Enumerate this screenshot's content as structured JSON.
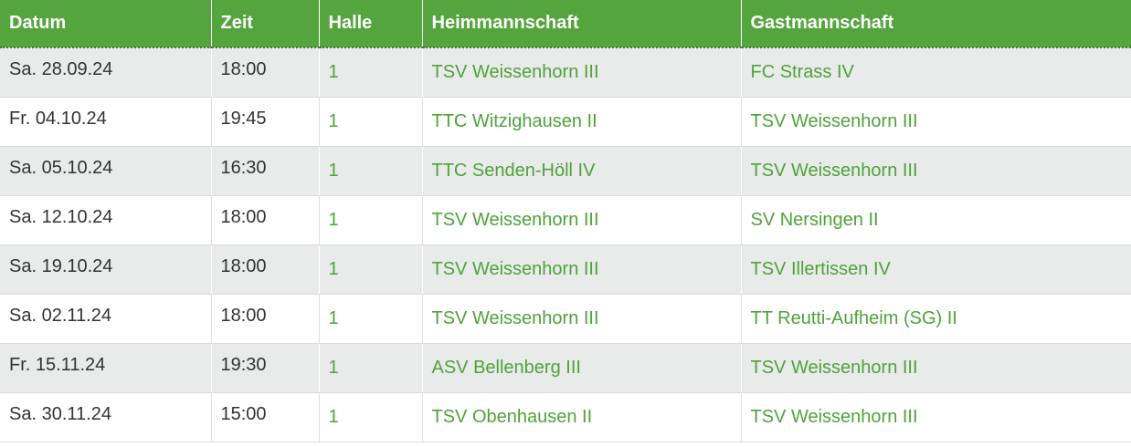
{
  "table": {
    "headers": [
      "Datum",
      "Zeit",
      "Halle",
      "Heimmannschaft",
      "Gastmannschaft"
    ],
    "rows": [
      {
        "datum": "Sa. 28.09.24",
        "zeit": "18:00",
        "halle": "1",
        "heim": "TSV Weissenhorn III",
        "gast": "FC Strass IV"
      },
      {
        "datum": "Fr. 04.10.24",
        "zeit": "19:45",
        "halle": "1",
        "heim": "TTC Witzighausen II",
        "gast": "TSV Weissenhorn III"
      },
      {
        "datum": "Sa. 05.10.24",
        "zeit": "16:30",
        "halle": "1",
        "heim": "TTC Senden-Höll IV",
        "gast": "TSV Weissenhorn III"
      },
      {
        "datum": "Sa. 12.10.24",
        "zeit": "18:00",
        "halle": "1",
        "heim": "TSV Weissenhorn III",
        "gast": "SV Nersingen II"
      },
      {
        "datum": "Sa. 19.10.24",
        "zeit": "18:00",
        "halle": "1",
        "heim": "TSV Weissenhorn III",
        "gast": "TSV Illertissen IV"
      },
      {
        "datum": "Sa. 02.11.24",
        "zeit": "18:00",
        "halle": "1",
        "heim": "TSV Weissenhorn III",
        "gast": "TT Reutti-Aufheim (SG) II"
      },
      {
        "datum": "Fr. 15.11.24",
        "zeit": "19:30",
        "halle": "1",
        "heim": "ASV Bellenberg III",
        "gast": "TSV Weissenhorn III"
      },
      {
        "datum": "Sa. 30.11.24",
        "zeit": "15:00",
        "halle": "1",
        "heim": "TSV Obenhausen II",
        "gast": "TSV Weissenhorn III"
      }
    ]
  },
  "colors": {
    "header_bg": "#55a53e",
    "link": "#4ea33a",
    "row_alt": "#e9eaea"
  }
}
